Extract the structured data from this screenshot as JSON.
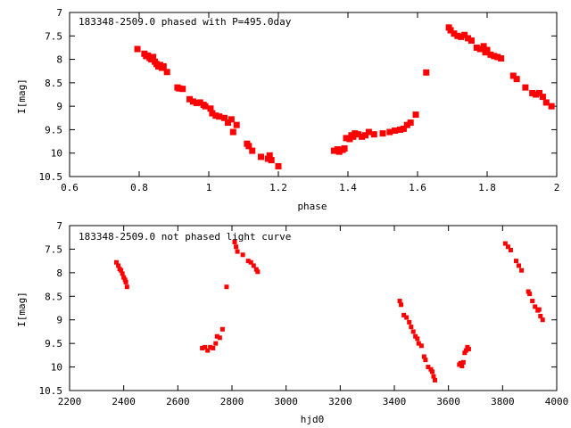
{
  "chart_data": [
    {
      "type": "scatter",
      "title": "183348-2509.0 phased with P=495.0day",
      "xlabel": "phase",
      "ylabel": "I[mag]",
      "xlim": [
        0.6,
        2.0
      ],
      "ylim": [
        10.5,
        7.0
      ],
      "y_inverted": true,
      "x_ticks": [
        "0.6",
        "0.8",
        "1",
        "1.2",
        "1.4",
        "1.6",
        "1.8",
        "2"
      ],
      "x_tick_values": [
        0.6,
        0.8,
        1.0,
        1.2,
        1.4,
        1.6,
        1.8,
        2.0
      ],
      "y_ticks": [
        "7",
        "7.5",
        "8",
        "8.5",
        "9",
        "9.5",
        "10",
        "10.5"
      ],
      "y_tick_values": [
        7,
        7.5,
        8,
        8.5,
        9,
        9.5,
        10,
        10.5
      ],
      "marker_color": "#ff0000",
      "grid": false,
      "points": [
        [
          0.795,
          7.78
        ],
        [
          0.815,
          7.88
        ],
        [
          0.82,
          7.93
        ],
        [
          0.825,
          7.92
        ],
        [
          0.83,
          7.97
        ],
        [
          0.835,
          8.0
        ],
        [
          0.84,
          7.95
        ],
        [
          0.845,
          8.05
        ],
        [
          0.85,
          8.1
        ],
        [
          0.855,
          8.15
        ],
        [
          0.86,
          8.12
        ],
        [
          0.865,
          8.18
        ],
        [
          0.87,
          8.15
        ],
        [
          0.88,
          8.27
        ],
        [
          0.91,
          8.6
        ],
        [
          0.915,
          8.62
        ],
        [
          0.925,
          8.63
        ],
        [
          0.945,
          8.85
        ],
        [
          0.955,
          8.9
        ],
        [
          0.965,
          8.93
        ],
        [
          0.975,
          8.92
        ],
        [
          0.985,
          8.97
        ],
        [
          0.99,
          9.0
        ],
        [
          1.005,
          9.05
        ],
        [
          1.01,
          9.15
        ],
        [
          1.02,
          9.2
        ],
        [
          1.03,
          9.22
        ],
        [
          1.045,
          9.25
        ],
        [
          1.055,
          9.35
        ],
        [
          1.065,
          9.28
        ],
        [
          1.07,
          9.55
        ],
        [
          1.08,
          9.4
        ],
        [
          1.11,
          9.8
        ],
        [
          1.115,
          9.85
        ],
        [
          1.125,
          9.95
        ],
        [
          1.15,
          10.08
        ],
        [
          1.17,
          10.12
        ],
        [
          1.175,
          10.05
        ],
        [
          1.18,
          10.15
        ],
        [
          1.2,
          10.28
        ],
        [
          1.36,
          9.95
        ],
        [
          1.37,
          9.92
        ],
        [
          1.375,
          9.97
        ],
        [
          1.385,
          9.93
        ],
        [
          1.39,
          9.9
        ],
        [
          1.395,
          9.68
        ],
        [
          1.405,
          9.7
        ],
        [
          1.41,
          9.62
        ],
        [
          1.415,
          9.65
        ],
        [
          1.42,
          9.58
        ],
        [
          1.43,
          9.6
        ],
        [
          1.44,
          9.65
        ],
        [
          1.45,
          9.62
        ],
        [
          1.46,
          9.55
        ],
        [
          1.475,
          9.6
        ],
        [
          1.5,
          9.58
        ],
        [
          1.52,
          9.55
        ],
        [
          1.535,
          9.52
        ],
        [
          1.55,
          9.5
        ],
        [
          1.56,
          9.48
        ],
        [
          1.57,
          9.4
        ],
        [
          1.58,
          9.35
        ],
        [
          1.595,
          9.18
        ],
        [
          1.625,
          8.28
        ],
        [
          1.69,
          7.32
        ],
        [
          1.695,
          7.38
        ],
        [
          1.705,
          7.45
        ],
        [
          1.715,
          7.5
        ],
        [
          1.725,
          7.52
        ],
        [
          1.735,
          7.48
        ],
        [
          1.745,
          7.55
        ],
        [
          1.755,
          7.6
        ],
        [
          1.77,
          7.75
        ],
        [
          1.78,
          7.78
        ],
        [
          1.79,
          7.72
        ],
        [
          1.795,
          7.85
        ],
        [
          1.8,
          7.8
        ],
        [
          1.81,
          7.9
        ],
        [
          1.82,
          7.93
        ],
        [
          1.83,
          7.95
        ],
        [
          1.84,
          7.98
        ],
        [
          1.875,
          8.35
        ],
        [
          1.885,
          8.42
        ],
        [
          1.91,
          8.6
        ],
        [
          1.93,
          8.72
        ],
        [
          1.94,
          8.75
        ],
        [
          1.95,
          8.72
        ],
        [
          1.96,
          8.8
        ],
        [
          1.97,
          8.92
        ],
        [
          1.985,
          9.0
        ]
      ]
    },
    {
      "type": "scatter",
      "title": "183348-2509.0 not phased light curve",
      "xlabel": "hjd0",
      "ylabel": "I[mag]",
      "xlim": [
        2200,
        4000
      ],
      "ylim": [
        10.5,
        7.0
      ],
      "y_inverted": true,
      "x_ticks": [
        "2200",
        "2400",
        "2600",
        "2800",
        "3000",
        "3200",
        "3400",
        "3600",
        "3800",
        "4000"
      ],
      "x_tick_values": [
        2200,
        2400,
        2600,
        2800,
        3000,
        3200,
        3400,
        3600,
        3800,
        4000
      ],
      "y_ticks": [
        "7",
        "7.5",
        "8",
        "8.5",
        "9",
        "9.5",
        "10",
        "10.5"
      ],
      "y_tick_values": [
        7,
        7.5,
        8,
        8.5,
        9,
        9.5,
        10,
        10.5
      ],
      "marker_color": "#ff0000",
      "grid": false,
      "points": [
        [
          2373,
          7.78
        ],
        [
          2380,
          7.85
        ],
        [
          2385,
          7.92
        ],
        [
          2390,
          7.95
        ],
        [
          2395,
          8.02
        ],
        [
          2400,
          8.1
        ],
        [
          2405,
          8.15
        ],
        [
          2408,
          8.2
        ],
        [
          2412,
          8.3
        ],
        [
          2690,
          9.6
        ],
        [
          2700,
          9.58
        ],
        [
          2710,
          9.65
        ],
        [
          2720,
          9.58
        ],
        [
          2730,
          9.6
        ],
        [
          2740,
          9.5
        ],
        [
          2745,
          9.35
        ],
        [
          2755,
          9.38
        ],
        [
          2765,
          9.2
        ],
        [
          2780,
          8.3
        ],
        [
          2810,
          7.35
        ],
        [
          2815,
          7.45
        ],
        [
          2820,
          7.55
        ],
        [
          2840,
          7.62
        ],
        [
          2860,
          7.75
        ],
        [
          2870,
          7.78
        ],
        [
          2880,
          7.85
        ],
        [
          2890,
          7.93
        ],
        [
          2895,
          7.98
        ],
        [
          3420,
          8.6
        ],
        [
          3425,
          8.68
        ],
        [
          3435,
          8.9
        ],
        [
          3445,
          8.95
        ],
        [
          3455,
          9.05
        ],
        [
          3462,
          9.15
        ],
        [
          3470,
          9.25
        ],
        [
          3478,
          9.35
        ],
        [
          3485,
          9.4
        ],
        [
          3490,
          9.5
        ],
        [
          3500,
          9.55
        ],
        [
          3510,
          9.78
        ],
        [
          3515,
          9.85
        ],
        [
          3525,
          10.0
        ],
        [
          3535,
          10.05
        ],
        [
          3540,
          10.1
        ],
        [
          3545,
          10.2
        ],
        [
          3550,
          10.28
        ],
        [
          3640,
          9.95
        ],
        [
          3645,
          9.92
        ],
        [
          3650,
          9.98
        ],
        [
          3655,
          9.9
        ],
        [
          3660,
          9.7
        ],
        [
          3665,
          9.65
        ],
        [
          3670,
          9.58
        ],
        [
          3675,
          9.62
        ],
        [
          3810,
          7.38
        ],
        [
          3820,
          7.45
        ],
        [
          3830,
          7.52
        ],
        [
          3850,
          7.75
        ],
        [
          3860,
          7.85
        ],
        [
          3870,
          7.95
        ],
        [
          3895,
          8.4
        ],
        [
          3900,
          8.45
        ],
        [
          3910,
          8.6
        ],
        [
          3920,
          8.72
        ],
        [
          3930,
          8.8
        ],
        [
          3935,
          8.78
        ],
        [
          3940,
          8.92
        ],
        [
          3948,
          9.0
        ]
      ]
    }
  ]
}
